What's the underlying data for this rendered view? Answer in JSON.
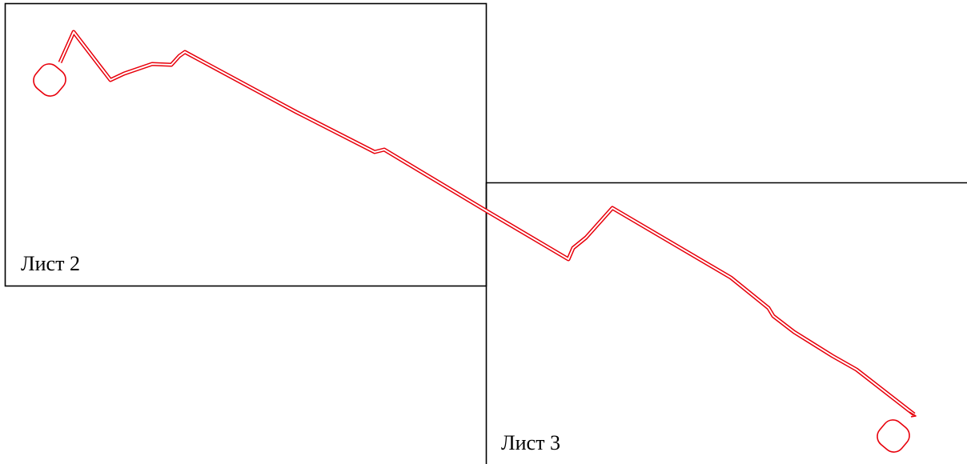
{
  "sheets": [
    {
      "label": "Лист 2"
    },
    {
      "label": "Лист 3"
    }
  ],
  "colors": {
    "route": "#e8000b",
    "frame": "#000000",
    "background": "#ffffff"
  }
}
